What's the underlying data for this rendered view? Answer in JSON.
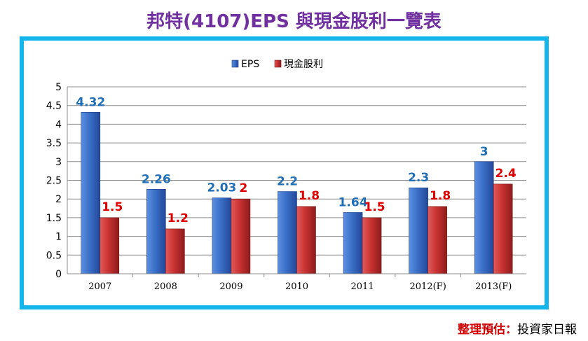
{
  "title": "邦特(4107)EPS 與現金股利一覽表",
  "source": {
    "label": "整理預估：",
    "value": "投資家日報"
  },
  "colors": {
    "eps": "#3a6fc6",
    "dividend": "#c83232",
    "eps_label": "#1f6fb8",
    "dividend_label": "#e00000",
    "frame": "#14b4ec",
    "title": "#7030a0"
  },
  "chart_data": {
    "type": "bar",
    "categories": [
      "2007",
      "2008",
      "2009",
      "2010",
      "2011",
      "2012(F)",
      "2013(F)"
    ],
    "series": [
      {
        "name": "EPS",
        "values": [
          4.32,
          2.26,
          2.03,
          2.2,
          1.64,
          2.3,
          3
        ],
        "labels": [
          "4.32",
          "2.26",
          "2.03",
          "2.2",
          "1.64",
          "2.3",
          "3"
        ]
      },
      {
        "name": "現金股利",
        "values": [
          1.5,
          1.2,
          2,
          1.8,
          1.5,
          1.8,
          2.4
        ],
        "labels": [
          "1.5",
          "1.2",
          "2",
          "1.8",
          "1.5",
          "1.8",
          "2.4"
        ]
      }
    ],
    "ylim": [
      0,
      5
    ],
    "yticks": [
      "0",
      "0.5",
      "1",
      "1.5",
      "2",
      "2.5",
      "3",
      "3.5",
      "4",
      "4.5",
      "5"
    ],
    "grid": true,
    "legend": "top-center"
  }
}
